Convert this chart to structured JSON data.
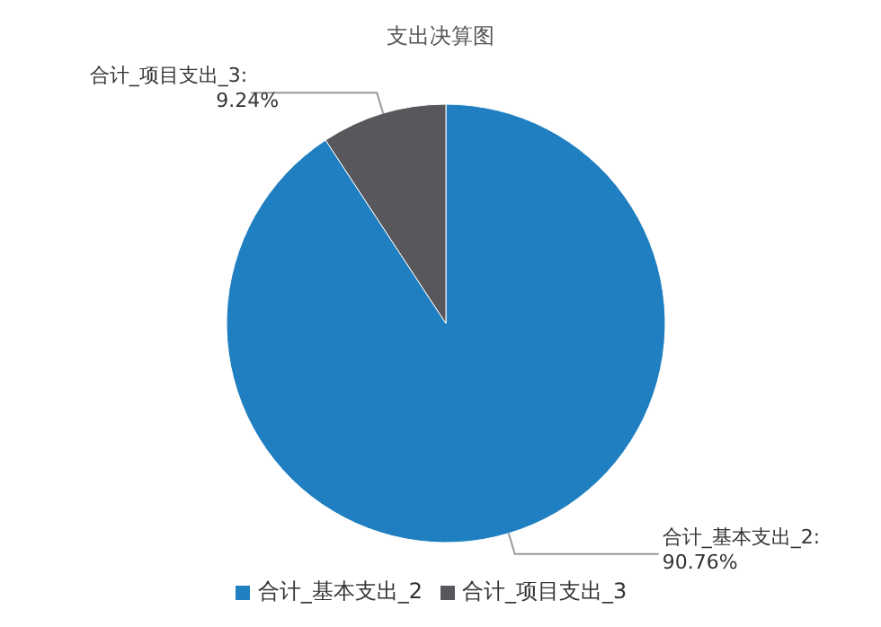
{
  "chart_data": {
    "type": "pie",
    "title": "支出决算图",
    "categories": [
      "合计_基本支出_2",
      "合计_项目支出_3"
    ],
    "values": [
      90.76,
      9.24
    ],
    "colors": [
      "#1f7fc0",
      "#58585c"
    ],
    "value_labels": [
      "合计_基本支出_2:\n90.76%",
      "合计_项目支出_3:\n9.24%"
    ],
    "legend": "bottom"
  }
}
